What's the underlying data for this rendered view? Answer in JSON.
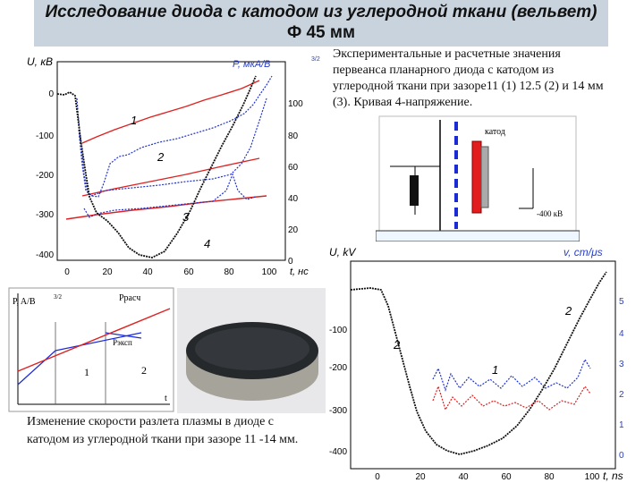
{
  "title": {
    "line1": "Исследование диода с катодом из углеродной ткани (вельвет)",
    "line2": "Ф 45 мм"
  },
  "caption_top": "Экспериментальные и расчетные значения первеанса планарного диода с катодом из углеродной ткани при зазоре11 (1) 12.5 (2) и 14 мм (3). Кривая 4-напряжение.",
  "caption_bottom": "Изменение скорости разлета плазмы в диоде с катодом из углеродной ткани при зазоре 11 -14 мм.",
  "chart1": {
    "ylabel_left": "U, кВ",
    "ylabel_right": "P, мкА/В",
    "ylabel_right_sup": "3/2",
    "xlabel": "t, нс",
    "x_ticks": [
      "0",
      "20",
      "40",
      "60",
      "80",
      "100"
    ],
    "y_ticks_left": [
      "0",
      "-100",
      "-200",
      "-300",
      "-400"
    ],
    "y_ticks_right": [
      "0",
      "20",
      "40",
      "60",
      "80",
      "100"
    ],
    "curve_labels": [
      "1",
      "2",
      "3",
      "4"
    ]
  },
  "schematic": {
    "cathode_label": "катод",
    "voltage_label": "-400 кВ"
  },
  "sketch": {
    "ylabel": "P, A/B",
    "ylabel_sup": "3/2",
    "calc_label": "Pрасч",
    "exp_label": "Pэксп",
    "region1": "1",
    "region2": "2",
    "t_label": "t"
  },
  "chart2": {
    "ylabel_left": "U, kV",
    "ylabel_right": "v, cm/μs",
    "xlabel": "t, ns",
    "x_ticks": [
      "0",
      "20",
      "40",
      "60",
      "80",
      "100"
    ],
    "y_ticks_left": [
      "-100",
      "-200",
      "-300",
      "-400"
    ],
    "y_ticks_right": [
      "0",
      "1",
      "2",
      "3",
      "4",
      "5"
    ],
    "curve_labels": [
      "1",
      "2",
      "2"
    ]
  },
  "colors": {
    "title_bg": "#c9d3dd",
    "series_blue": "#2233cc",
    "fit_red": "#dd2222",
    "voltage_black": "#111111",
    "anode_blue": "#1a2bd6",
    "cathode_red": "#e21d1d",
    "right_axis_blue": "#2a3fbf"
  }
}
